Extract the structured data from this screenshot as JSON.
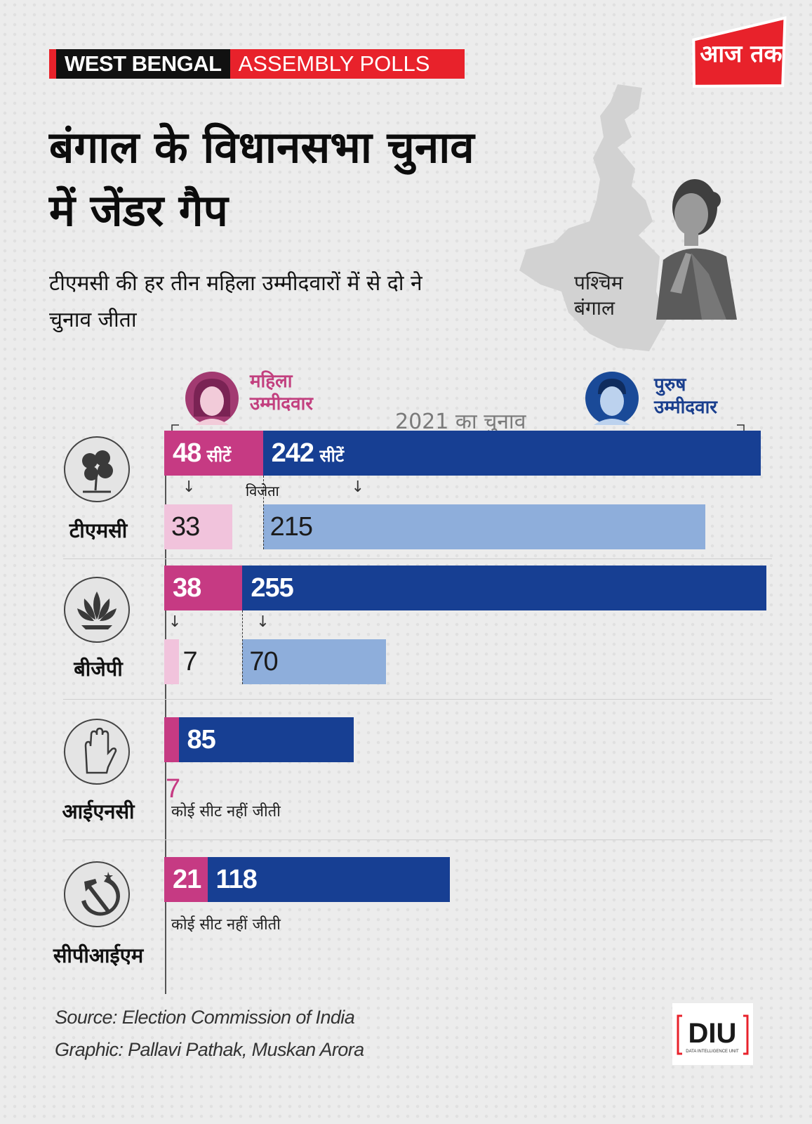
{
  "header": {
    "tag_region": "WEST BENGAL",
    "tag_topic": "ASSEMBLY POLLS"
  },
  "brand": {
    "logo_text": "आज तक",
    "unit_logo_text": "DIU",
    "unit_logo_sub": "DATA INTELLIGENCE UNIT"
  },
  "title": "बंगाल के विधानसभा चुनाव में जेंडर गैप",
  "subtitle": "टीएमसी की हर तीन महिला उम्मीदवारों में से दो ने चुनाव जीता",
  "map_label": "पश्चिम बंगाल",
  "colors": {
    "female_contested": "#c63a83",
    "male_contested": "#173f93",
    "female_won": "#f1c3dc",
    "male_won": "#8eaedb",
    "accent_red": "#e8222b"
  },
  "chart_data": {
    "type": "bar",
    "title": "2021 का चुनाव",
    "legend": {
      "female": "महिला उम्मीदवार",
      "male": "पुरुष उम्मीदवार"
    },
    "winners_label": "विजेता",
    "seat_unit": "सीटें",
    "parties": [
      {
        "name": "टीएमसी",
        "icon": "shamrock-flower-icon",
        "female_contested": 48,
        "male_contested": 242,
        "female_won": 33,
        "male_won": 215,
        "note": ""
      },
      {
        "name": "बीजेपी",
        "icon": "lotus-icon",
        "female_contested": 38,
        "male_contested": 255,
        "female_won": 7,
        "male_won": 70,
        "note": ""
      },
      {
        "name": "आईएनसी",
        "icon": "hand-icon",
        "female_contested": 7,
        "male_contested": 85,
        "female_won": 0,
        "male_won": 0,
        "note": "कोई सीट नहीं जीती"
      },
      {
        "name": "सीपीआईएम",
        "icon": "hammer-sickle-icon",
        "female_contested": 21,
        "male_contested": 118,
        "female_won": 0,
        "male_won": 0,
        "note": "कोई सीट नहीं जीती"
      }
    ]
  },
  "footer": {
    "source": "Source: Election Commission of India",
    "credit": "Graphic: Pallavi Pathak, Muskan Arora"
  }
}
